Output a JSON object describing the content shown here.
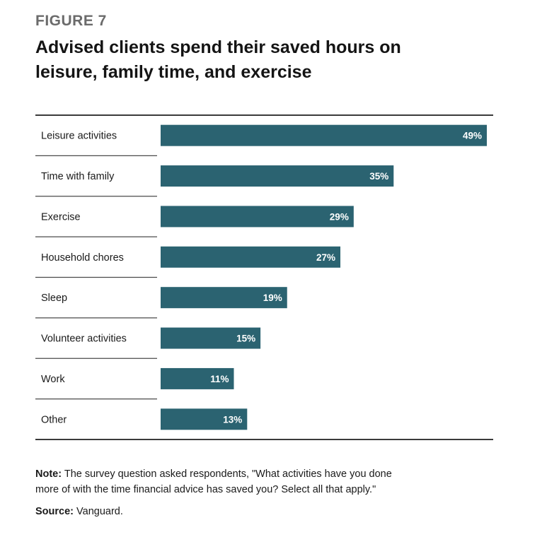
{
  "figure_label": "FIGURE 7",
  "title_line1": "Advised clients spend their saved hours on",
  "title_line2": "leisure, family time, and exercise",
  "note_label": "Note:",
  "note_line1": "The survey question asked respondents, \"What activities have you done",
  "note_line2": "more of with the time financial advice has saved you? Select all that apply.\"",
  "source_label": "Source:",
  "source_text": "Vanguard.",
  "colors": {
    "bar": "#2b6371",
    "bar_label": "#ffffff",
    "rule": "#3a3a3a",
    "divider": "#4a4a4a"
  },
  "chart_data": {
    "type": "bar",
    "orientation": "horizontal",
    "categories": [
      "Leisure activities",
      "Time with family",
      "Exercise",
      "Household chores",
      "Sleep",
      "Volunteer activities",
      "Work",
      "Other"
    ],
    "values": [
      49,
      35,
      29,
      27,
      19,
      15,
      11,
      13
    ],
    "value_labels": [
      "49%",
      "35%",
      "29%",
      "27%",
      "19%",
      "15%",
      "11%",
      "13%"
    ],
    "unit": "%",
    "xlim": [
      0,
      49
    ],
    "grid": false,
    "legend": "none"
  }
}
